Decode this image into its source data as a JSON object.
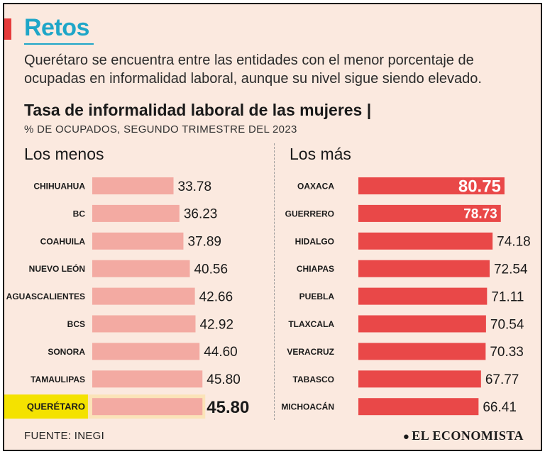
{
  "tag": "Retos",
  "intro": "Querétaro se encuentra entre las entidades con el menor porcentaje de ocupadas en informalidad laboral, aunque su nivel sigue siendo elevado.",
  "source": "FUENTE: INEGI",
  "logo": "EL ECONOMISTA",
  "logo_icon": "globe-icon",
  "colors": {
    "accent_red": "#e63b3b",
    "tag_blue": "#1fa6c8",
    "bar_low": "#f3aaa2",
    "bar_high": "#e94848",
    "highlight": "#f4e200",
    "highlight_row": "#fbe3b8",
    "background": "#fbe9df"
  },
  "chart_data": {
    "type": "bar",
    "orientation": "horizontal",
    "title": "Tasa de informalidad laboral de las mujeres |",
    "subtitle": "% DE OCUPADOS, SEGUNDO TRIMESTRE DEL 2023",
    "xlim": [
      0,
      100
    ],
    "panels": [
      {
        "name": "Los menos",
        "categories": [
          "CHIHUAHUA",
          "BC",
          "COAHUILA",
          "NUEVO LEÓN",
          "AGUASCALIENTES",
          "BCS",
          "SONORA",
          "TAMAULIPAS",
          "QUERÉTARO"
        ],
        "values": [
          33.78,
          36.23,
          37.89,
          40.56,
          42.66,
          42.92,
          44.6,
          45.8,
          45.8
        ],
        "labels": [
          "33.78",
          "36.23",
          "37.89",
          "40.56",
          "42.66",
          "42.92",
          "44.60",
          "45.80",
          "45.80"
        ],
        "highlight": "QUERÉTARO"
      },
      {
        "name": "Los más",
        "categories": [
          "OAXACA",
          "GUERRERO",
          "HIDALGO",
          "CHIAPAS",
          "PUEBLA",
          "TLAXCALA",
          "VERACRUZ",
          "TABASCO",
          "MICHOACÁN"
        ],
        "values": [
          80.75,
          78.73,
          74.18,
          72.54,
          71.11,
          70.54,
          70.33,
          67.77,
          66.41
        ],
        "labels": [
          "80.75",
          "78.73",
          "74.18",
          "72.54",
          "71.11",
          "70.54",
          "70.33",
          "67.77",
          "66.41"
        ]
      }
    ]
  }
}
